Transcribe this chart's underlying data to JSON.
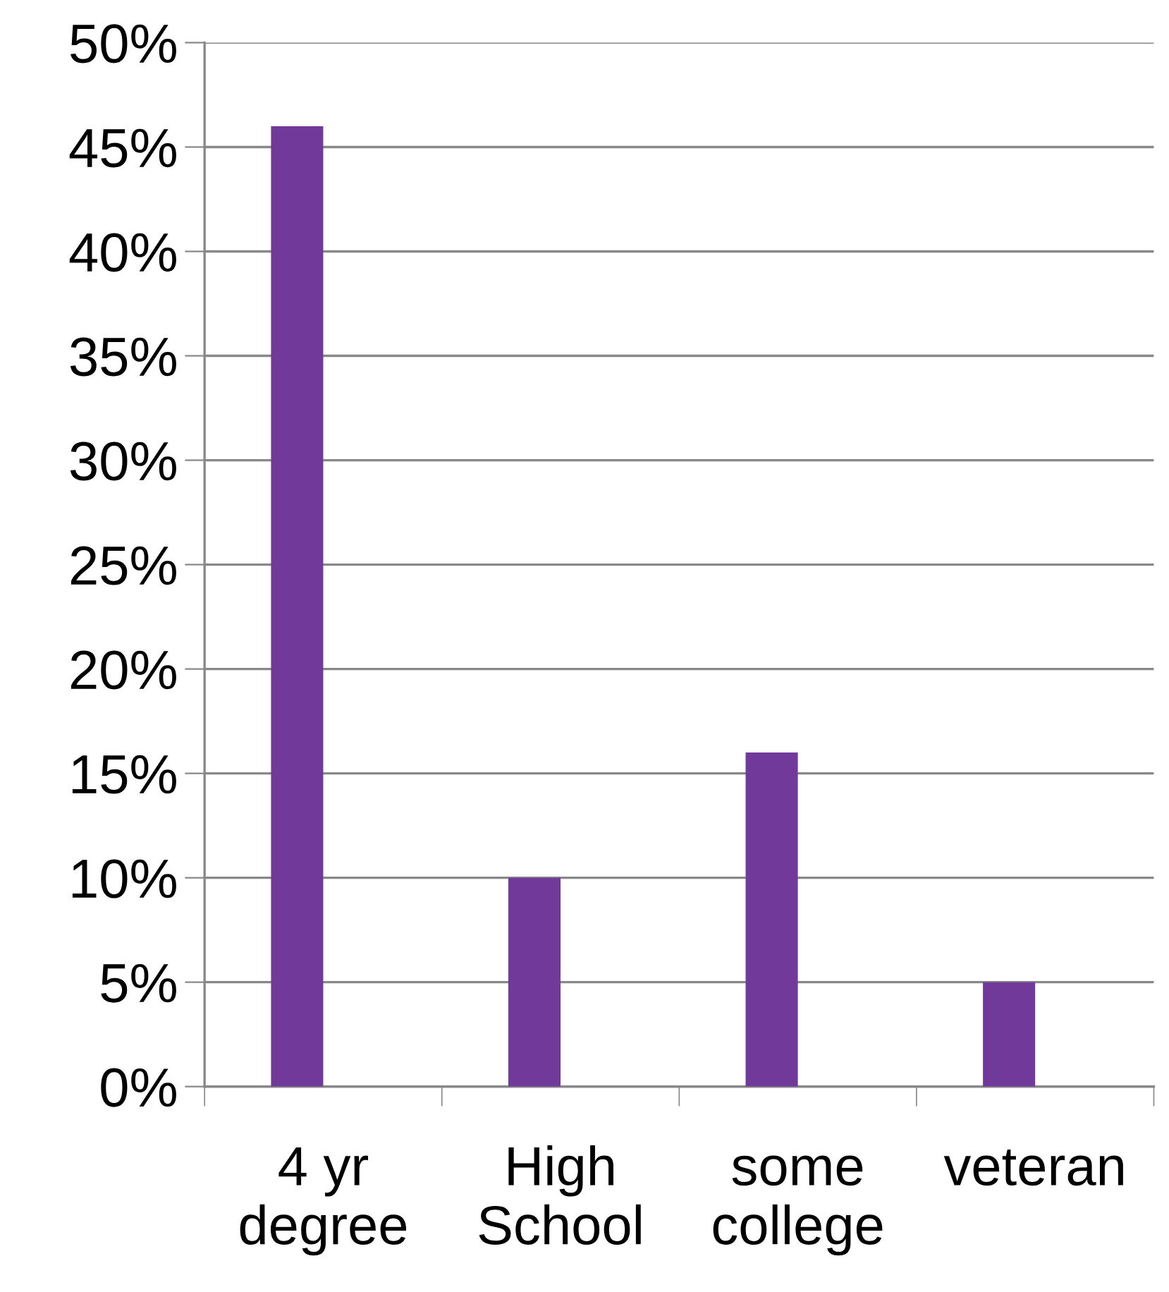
{
  "chart_data": {
    "type": "bar",
    "categories": [
      "4 yr\ndegree",
      "High\nSchool",
      "some\ncollege",
      "veteran"
    ],
    "values": [
      46,
      10,
      16,
      5
    ],
    "color": "#70399a",
    "ylim": [
      0,
      50
    ],
    "yticks": [
      {
        "value": 0,
        "label": "0%"
      },
      {
        "value": 5,
        "label": "5%"
      },
      {
        "value": 10,
        "label": "10%"
      },
      {
        "value": 15,
        "label": "15%"
      },
      {
        "value": 20,
        "label": "20%"
      },
      {
        "value": 25,
        "label": "25%"
      },
      {
        "value": 30,
        "label": "30%"
      },
      {
        "value": 35,
        "label": "35%"
      },
      {
        "value": 40,
        "label": "40%"
      },
      {
        "value": 45,
        "label": "45%"
      },
      {
        "value": 50,
        "label": "50%"
      }
    ],
    "grid": "y"
  }
}
